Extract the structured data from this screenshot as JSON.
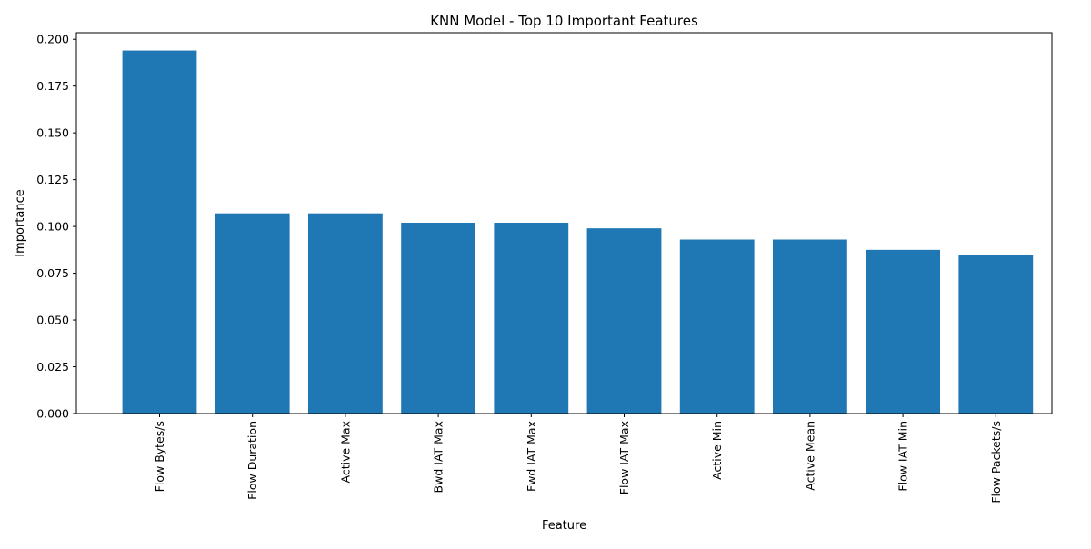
{
  "chart_data": {
    "type": "bar",
    "title": "KNN Model - Top 10 Important Features",
    "xlabel": "Feature",
    "ylabel": "Importance",
    "categories": [
      "Flow Bytes/s",
      "Flow Duration",
      "Active Max",
      "Bwd IAT Max",
      "Fwd IAT Max",
      "Flow IAT Max",
      "Active Min",
      "Active Mean",
      "Flow IAT Min",
      "Flow Packets/s"
    ],
    "values": [
      0.194,
      0.107,
      0.107,
      0.102,
      0.102,
      0.099,
      0.093,
      0.093,
      0.0875,
      0.085
    ],
    "ylim": [
      0,
      0.2035
    ],
    "yticks": [
      "0.000",
      "0.025",
      "0.050",
      "0.075",
      "0.100",
      "0.125",
      "0.150",
      "0.175",
      "0.200"
    ],
    "bar_color": "#1f77b4",
    "grid": false,
    "legend": null
  }
}
